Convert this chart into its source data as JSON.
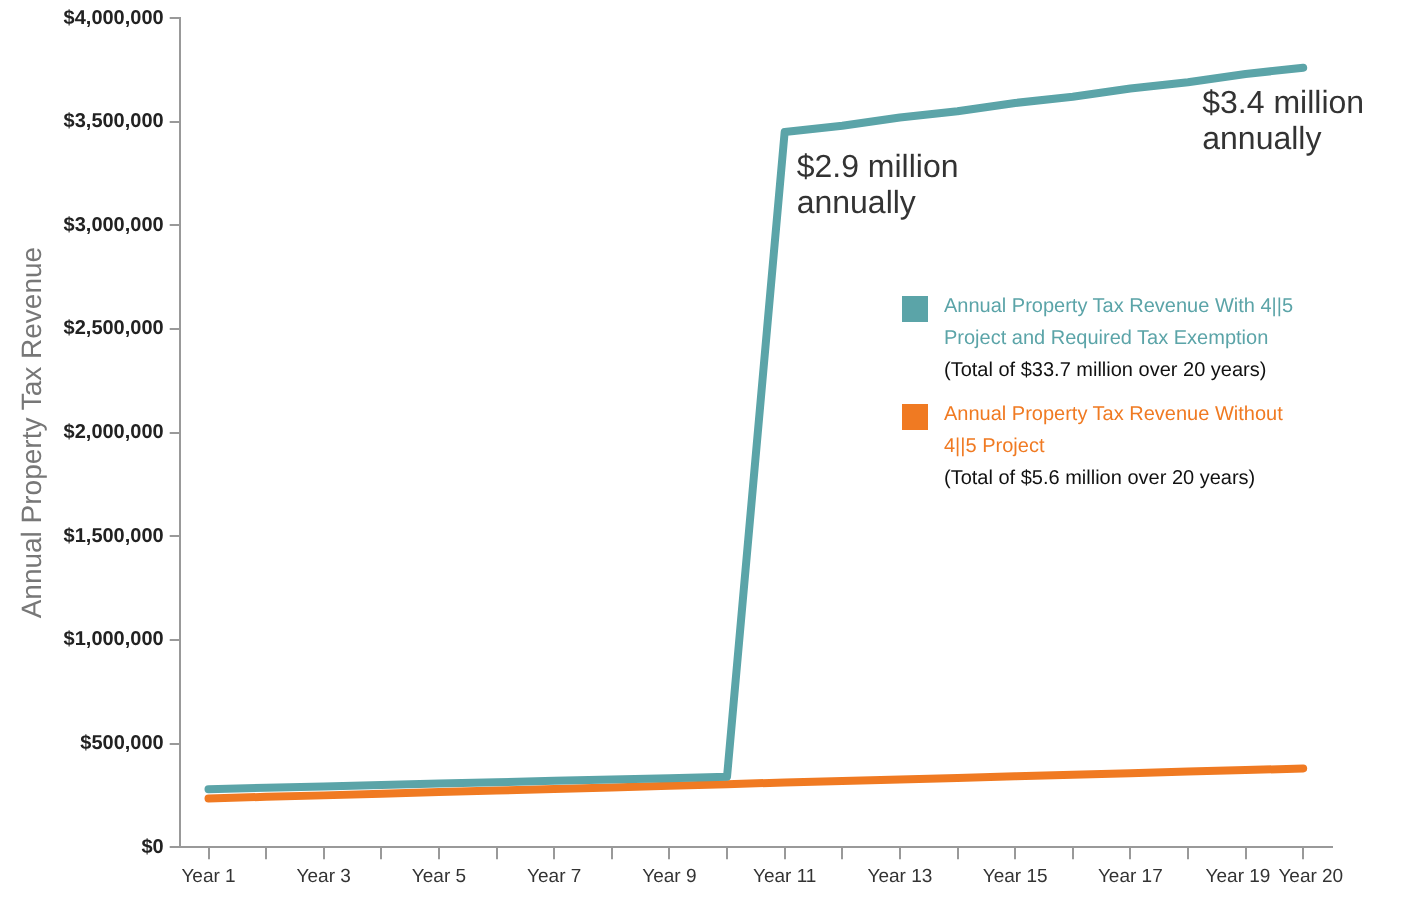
{
  "chart_data": {
    "type": "line",
    "ylabel": "Annual Property Tax Revenue",
    "categories": [
      "Year 1",
      null,
      "Year 3",
      null,
      "Year 5",
      null,
      "Year 7",
      null,
      "Year 9",
      null,
      "Year 11",
      null,
      "Year 13",
      null,
      "Year 15",
      null,
      "Year 17",
      null,
      "Year 19",
      "Year 20"
    ],
    "series": [
      {
        "name": "Annual Property Tax Revenue With 4||5 Project and Required Tax Exemption",
        "color": "#5ba4a8",
        "values": [
          280000,
          287000,
          293000,
          300000,
          307000,
          313000,
          320000,
          327000,
          333000,
          340000,
          3450000,
          3480000,
          3520000,
          3550000,
          3590000,
          3620000,
          3660000,
          3690000,
          3730000,
          3760000
        ]
      },
      {
        "name": "Annual Property Tax Revenue Without 4||5 Project",
        "color": "#f07a22",
        "values": [
          235000,
          243000,
          250000,
          258000,
          266000,
          273000,
          281000,
          288000,
          296000,
          304000,
          312000,
          319000,
          327000,
          334000,
          342000,
          350000,
          357000,
          365000,
          372000,
          380000
        ]
      }
    ],
    "ylim": [
      0,
      4000000
    ],
    "yticks": [
      {
        "value": 0,
        "label": "$0"
      },
      {
        "value": 500000,
        "label": "$500,000"
      },
      {
        "value": 1000000,
        "label": "$1,000,000"
      },
      {
        "value": 1500000,
        "label": "$1,500,000"
      },
      {
        "value": 2000000,
        "label": "$2,000,000"
      },
      {
        "value": 2500000,
        "label": "$2,500,000"
      },
      {
        "value": 3000000,
        "label": "$3,000,000"
      },
      {
        "value": 3500000,
        "label": "$3,500,000"
      },
      {
        "value": 4000000,
        "label": "$4,000,000"
      }
    ],
    "annotations": [
      {
        "text": "$2.9 million annually",
        "x": "Year 11",
        "y": 3450000
      },
      {
        "text": "$3.4 million annually",
        "x": "Year 20",
        "y": 3760000
      },
      "(Total of $33.7 million over 20 years)",
      "(Total of $5.6 million over 20 years)"
    ],
    "grid": false,
    "legend": "right",
    "marker": "none",
    "line_style": "solid"
  }
}
